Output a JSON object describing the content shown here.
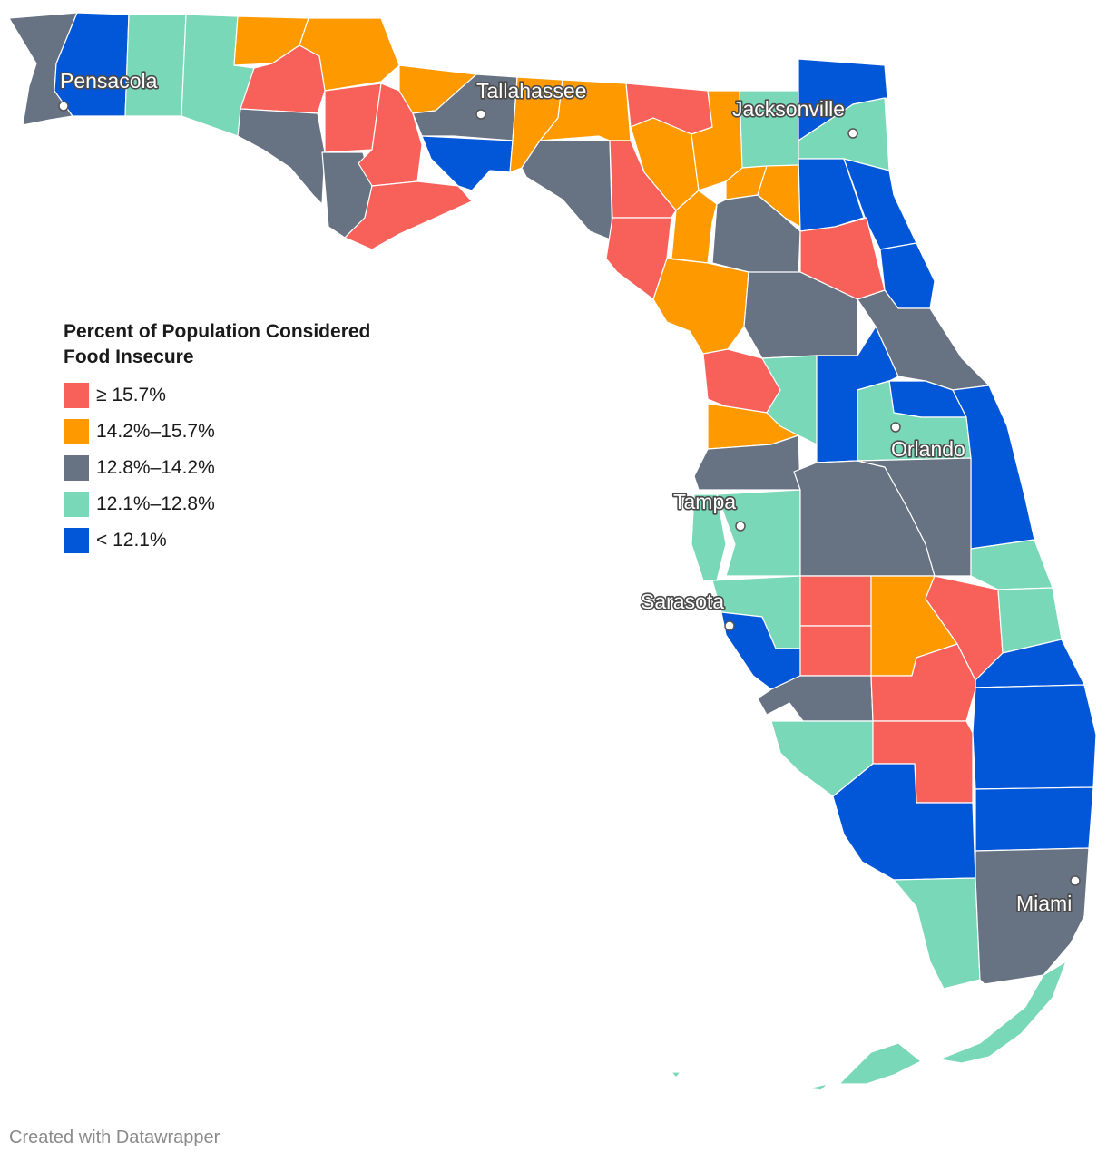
{
  "legend": {
    "title": "Percent of Population Considered\nFood Insecure",
    "items": [
      {
        "label": "≥ 15.7%",
        "color": "#f8605a"
      },
      {
        "label": "14.2%–15.7%",
        "color": "#fe9a00"
      },
      {
        "label": "12.8%–14.2%",
        "color": "#677282"
      },
      {
        "label": "12.1%–12.8%",
        "color": "#78d8b8"
      },
      {
        "label": "< 12.1%",
        "color": "#0256d8"
      }
    ]
  },
  "cities": [
    "Pensacola",
    "Tallahassee",
    "Jacksonville",
    "Orlando",
    "Tampa",
    "Sarasota",
    "Miami"
  ],
  "credit": "Created with Datawrapper",
  "colors": {
    "high": "#f8605a",
    "mid_high": "#fe9a00",
    "mid": "#677282",
    "mid_low": "#78d8b8",
    "low": "#0256d8"
  }
}
